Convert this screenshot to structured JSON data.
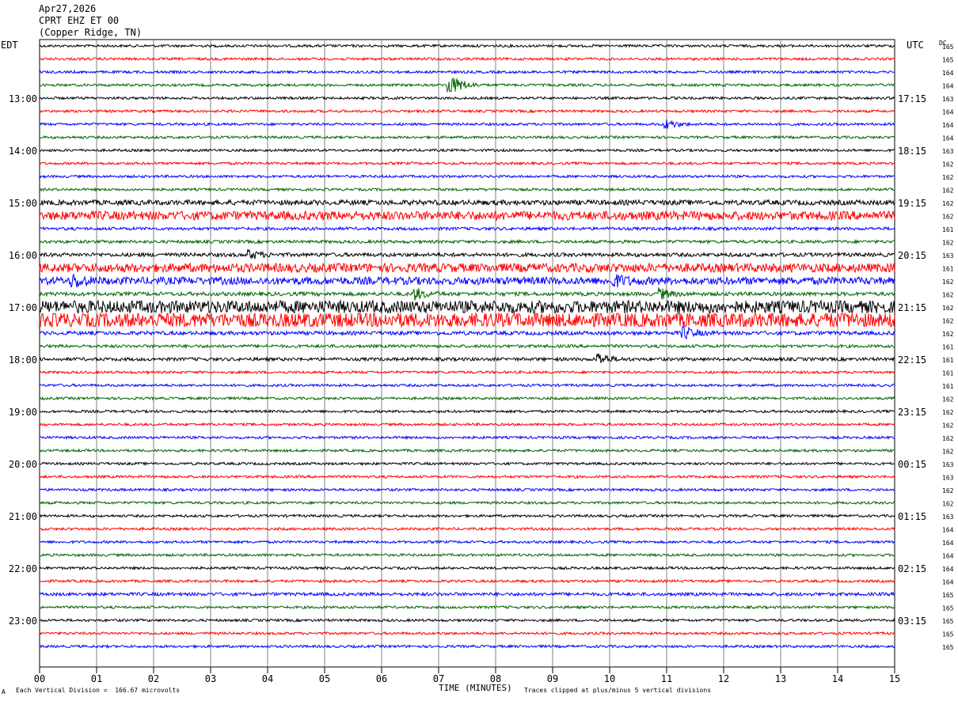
{
  "header": {
    "date": "Apr27,2026",
    "station": "CPRT EHZ ET 00",
    "location": "(Copper Ridge, TN)"
  },
  "left_timezone": "EDT",
  "right_timezone": "UTC",
  "dc_label": "DC",
  "footer": {
    "scale_note": "Each Vertical Division =  166.67 microvolts",
    "clip_note": "Traces clipped at plus/minus 5 vertical divisions",
    "corner_mark": "A"
  },
  "colors": {
    "trace_cycle": [
      "#000000",
      "#ff0000",
      "#0000ff",
      "#006400"
    ],
    "grid": "#808080"
  },
  "chart_data": {
    "type": "line",
    "title": "",
    "xlabel": "TIME (MINUTES)",
    "xlim": [
      0,
      15
    ],
    "x_ticks": [
      "00",
      "01",
      "02",
      "03",
      "04",
      "05",
      "06",
      "07",
      "08",
      "09",
      "10",
      "11",
      "12",
      "13",
      "14",
      "15"
    ],
    "trace_count": 47,
    "left_hour_labels": [
      "13:00",
      "14:00",
      "15:00",
      "16:00",
      "17:00",
      "18:00",
      "19:00",
      "20:00",
      "21:00",
      "22:00",
      "23:00"
    ],
    "right_hour_labels": [
      "17:15",
      "18:15",
      "19:15",
      "20:15",
      "21:15",
      "22:15",
      "23:15",
      "00:15",
      "01:15",
      "02:15",
      "03:15"
    ],
    "first_hour_label_trace": 4,
    "traces_per_hour": 4,
    "dc_offsets": [
      165,
      165,
      164,
      164,
      163,
      164,
      164,
      164,
      163,
      162,
      162,
      162,
      162,
      162,
      161,
      162,
      163,
      161,
      162,
      162,
      162,
      162,
      162,
      161,
      161,
      161,
      161,
      162,
      162,
      162,
      162,
      162,
      163,
      163,
      162,
      162,
      163,
      164,
      164,
      164,
      164,
      164,
      165,
      165,
      165,
      165,
      165
    ],
    "noise_levels": [
      1,
      1,
      1,
      1,
      1,
      1,
      1,
      1,
      1,
      1,
      1,
      1,
      2,
      3.5,
      1.2,
      1.2,
      1.5,
      3.5,
      3,
      1.5,
      5,
      6,
      1.5,
      1.2,
      1.3,
      1,
      1,
      1,
      1,
      1,
      1,
      1,
      1,
      1,
      1,
      1,
      1,
      1,
      1,
      1,
      1,
      1,
      1.3,
      1,
      1,
      1,
      1
    ],
    "events": [
      {
        "trace": 3,
        "minute": 7.2,
        "amplitude": 18
      },
      {
        "trace": 6,
        "minute": 11.0,
        "amplitude": 6
      },
      {
        "trace": 16,
        "minute": 3.7,
        "amplitude": 5
      },
      {
        "trace": 18,
        "minute": 0.6,
        "amplitude": 7
      },
      {
        "trace": 18,
        "minute": 10.1,
        "amplitude": 7
      },
      {
        "trace": 19,
        "minute": 6.6,
        "amplitude": 7
      },
      {
        "trace": 19,
        "minute": 10.9,
        "amplitude": 6
      },
      {
        "trace": 22,
        "minute": 11.3,
        "amplitude": 8
      },
      {
        "trace": 24,
        "minute": 9.8,
        "amplitude": 8
      },
      {
        "trace": 21,
        "minute": 13.8,
        "amplitude": 6
      }
    ]
  }
}
